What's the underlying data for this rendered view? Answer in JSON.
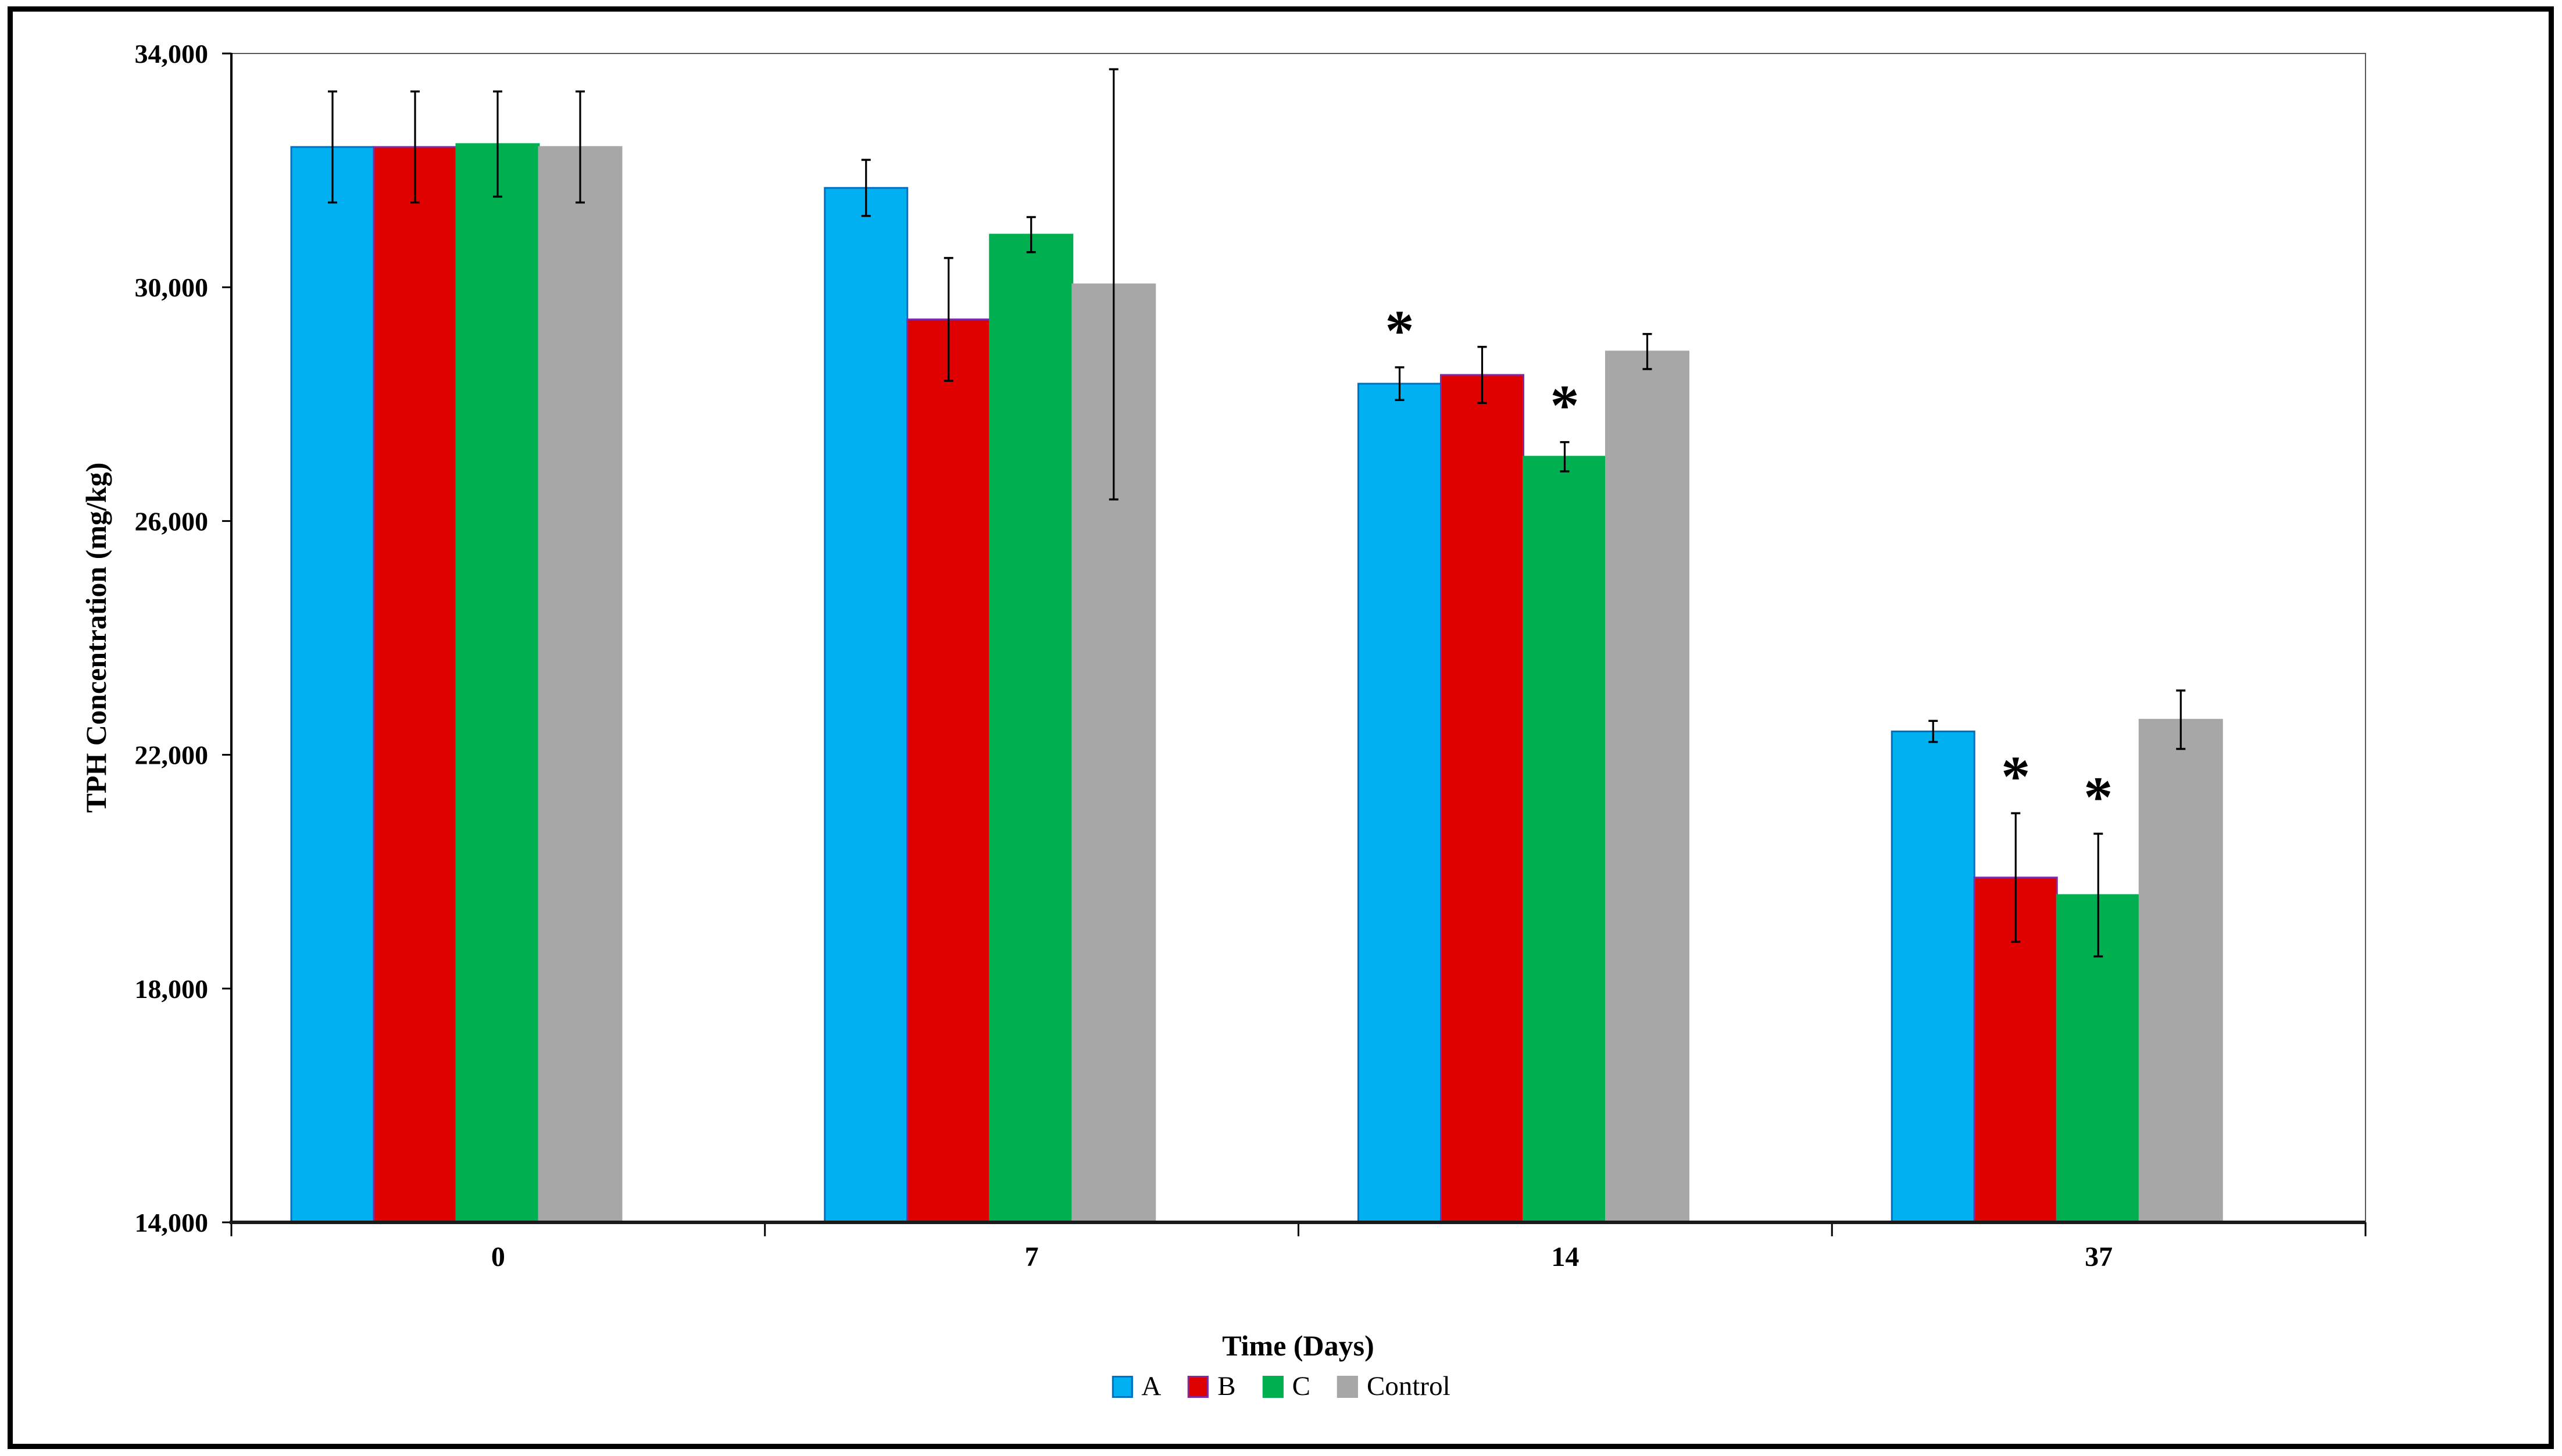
{
  "chart_data": {
    "type": "bar",
    "title": "",
    "xlabel": "Time (Days)",
    "ylabel": "TPH Concentration (mg/kg)",
    "categories": [
      "0",
      "7",
      "14",
      "37"
    ],
    "series": [
      {
        "name": "A",
        "color": "#00B0F0",
        "border_color": "#0070C0",
        "values": [
          32400,
          31700,
          28350,
          22400
        ],
        "errors": [
          950,
          480,
          280,
          180
        ],
        "significant": [
          false,
          false,
          true,
          false
        ]
      },
      {
        "name": "B",
        "color": "#DF0000",
        "border_color": "#7F2BA8",
        "values": [
          32400,
          29450,
          28500,
          19900
        ],
        "errors": [
          950,
          1050,
          480,
          1100
        ],
        "significant": [
          false,
          false,
          false,
          true
        ]
      },
      {
        "name": "C",
        "color": "#00B050",
        "border_color": "#00B050",
        "values": [
          32450,
          30900,
          27100,
          19600
        ],
        "errors": [
          900,
          300,
          250,
          1050
        ],
        "significant": [
          false,
          false,
          true,
          true
        ]
      },
      {
        "name": "Control",
        "color": "#A7A7A7",
        "border_color": "#A7A7A7",
        "values": [
          32400,
          30050,
          28900,
          22600
        ],
        "errors": [
          950,
          3680,
          300,
          500
        ],
        "significant": [
          false,
          false,
          false,
          false
        ]
      }
    ],
    "y_axis": {
      "min": 14000,
      "max": 34000,
      "step": 4000,
      "tick_labels": [
        "14,000",
        "18,000",
        "22,000",
        "26,000",
        "30,000",
        "34,000"
      ]
    },
    "x_axis": {
      "tick_labels": [
        "0",
        "7",
        "14",
        "37"
      ]
    },
    "legend": {
      "position": "bottom-center",
      "entries": [
        "A",
        "B",
        "C",
        "Control"
      ]
    },
    "annotations": {
      "significance_marker": "*"
    },
    "error_bars": true,
    "grid": false
  },
  "colors": {
    "figure_border": "#000000",
    "plot_border": "#595959",
    "y_axis_line": "#000000",
    "x_axis_line": "#1A1A1A",
    "error_bar": "#000000",
    "background": "#FFFFFF"
  }
}
